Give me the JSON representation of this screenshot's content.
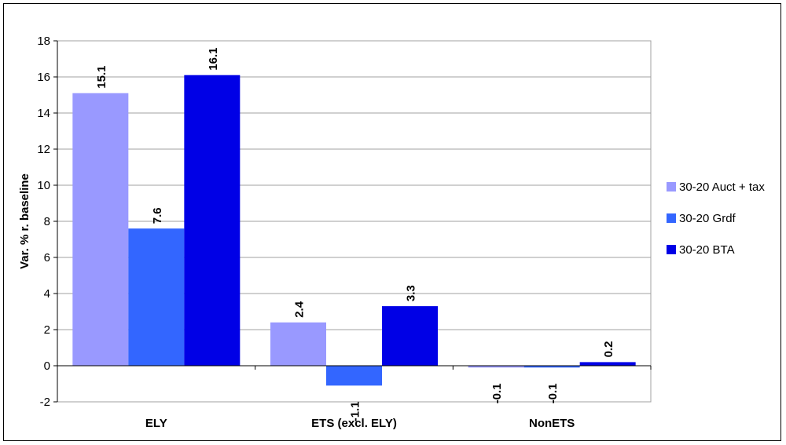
{
  "chart_data": {
    "type": "bar",
    "title": "",
    "xlabel": "",
    "ylabel": "Var. % r. baseline",
    "categories": [
      "ELY",
      "ETS (excl. ELY)",
      "NonETS"
    ],
    "series": [
      {
        "name": "30-20 Auct + tax",
        "color": "#9999ff",
        "values": [
          15.1,
          2.4,
          -0.1
        ]
      },
      {
        "name": "30-20 Grdf",
        "color": "#3366ff",
        "values": [
          7.6,
          -1.1,
          -0.1
        ]
      },
      {
        "name": "30-20 BTA",
        "color": "#0000e6",
        "values": [
          16.1,
          3.3,
          0.2
        ]
      }
    ],
    "ylim": [
      -2,
      18
    ],
    "yticks": [
      -2,
      0,
      2,
      4,
      6,
      8,
      10,
      12,
      14,
      16,
      18
    ],
    "grid": true,
    "legend": "right"
  }
}
